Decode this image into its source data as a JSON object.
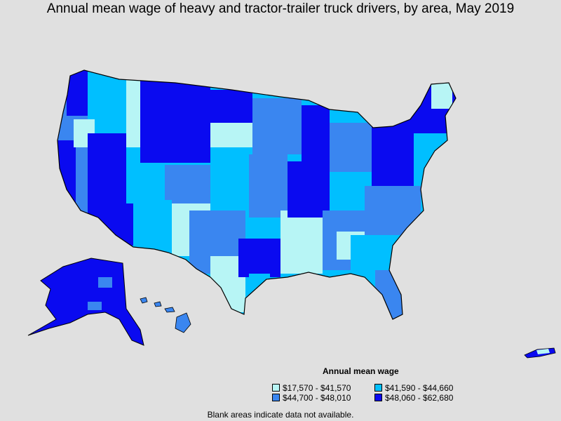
{
  "title": "Annual mean wage of heavy and tractor-trailer truck drivers, by area, May 2019",
  "legend": {
    "title": "Annual mean wage",
    "items": [
      {
        "label": "$17,570 - $41,570",
        "color": "#b7f5f5"
      },
      {
        "label": "$41,590 - $44,660",
        "color": "#00bfff"
      },
      {
        "label": "$44,700 - $48,010",
        "color": "#3a86f0"
      },
      {
        "label": "$48,060 - $62,680",
        "color": "#0a0af0"
      }
    ]
  },
  "footnote": "Blank areas indicate data not available.",
  "colors": {
    "background": "#e0e0e0",
    "border": "#000000"
  }
}
